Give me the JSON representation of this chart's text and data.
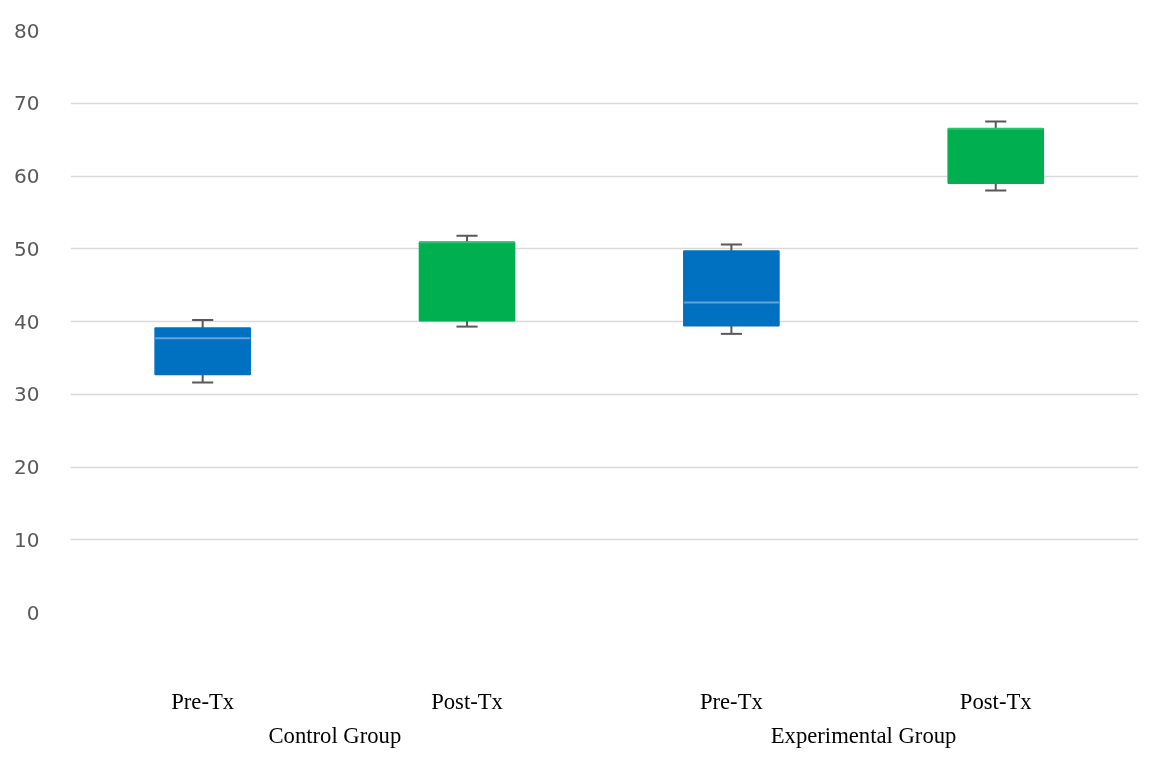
{
  "chart_data": {
    "type": "box",
    "categories": [
      "Pre-Tx",
      "Post-Tx",
      "Pre-Tx",
      "Post-Tx"
    ],
    "boxes": [
      {
        "low": 31.6,
        "q1": 32.7,
        "median": 37.7,
        "q3": 39.1,
        "high": 40.2
      },
      {
        "low": 39.3,
        "q1": 40.1,
        "median": 50.9,
        "q3": 50.9,
        "high": 51.8
      },
      {
        "low": 38.3,
        "q1": 39.4,
        "median": 42.6,
        "q3": 49.7,
        "high": 50.6
      },
      {
        "low": 58.0,
        "q1": 59.0,
        "median": 66.5,
        "q3": 66.5,
        "high": 67.5
      }
    ],
    "colors": [
      "#0070c0",
      "#00b050",
      "#0070c0",
      "#00b050"
    ],
    "ylim": [
      0,
      80
    ],
    "yticks": [
      0,
      10,
      20,
      30,
      40,
      50,
      60,
      70,
      80
    ],
    "grid": "y",
    "annotations": [
      "Control Group",
      "Experimental Group"
    ]
  }
}
